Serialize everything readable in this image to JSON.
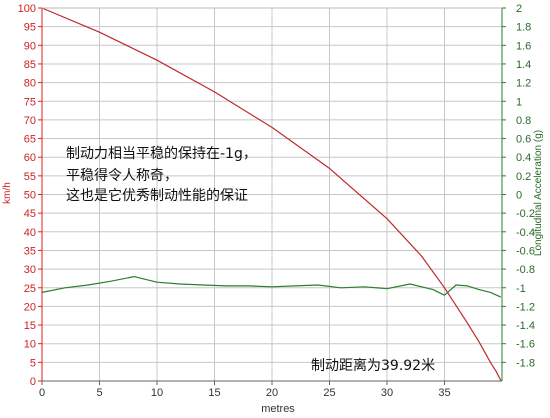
{
  "chart_data": {
    "type": "line",
    "title": "",
    "xlabel": "metres",
    "ylabel_left": "km/h",
    "ylabel_right": "Longitudinal Acceleration (g)",
    "xlim": [
      0,
      40
    ],
    "ylim_left": [
      0,
      100
    ],
    "ylim_right": [
      -2,
      2
    ],
    "grid": true,
    "x_ticks": [
      0,
      5,
      10,
      15,
      20,
      25,
      30,
      35
    ],
    "y_left_ticks": [
      0,
      5,
      10,
      15,
      20,
      25,
      30,
      35,
      40,
      45,
      50,
      55,
      60,
      65,
      70,
      75,
      80,
      85,
      90,
      95,
      100
    ],
    "y_right_ticks": [
      "2",
      "1.8",
      "1.6",
      "1.4",
      "1.2",
      "1",
      "0.8",
      "0.6",
      "0.4",
      "0.2",
      "0",
      "-0.2",
      "-0.4",
      "-0.6",
      "-0.8",
      "-1",
      "-1.2",
      "-1.4",
      "-1.6",
      "-1.8"
    ],
    "y_right_tick_values": [
      2,
      1.8,
      1.6,
      1.4,
      1.2,
      1,
      0.8,
      0.6,
      0.4,
      0.2,
      0,
      -0.2,
      -0.4,
      -0.6,
      -0.8,
      -1,
      -1.2,
      -1.4,
      -1.6,
      -1.8
    ],
    "colors": {
      "speed": "#c0282d",
      "accel": "#2e7d2e",
      "left_axis": "#dd2222",
      "right_axis": "#2e7d2e",
      "grid": "#c8c8c8"
    },
    "series": [
      {
        "axis": "left",
        "x": [
          0,
          5,
          10,
          15,
          20,
          25,
          30,
          33,
          35,
          37,
          38,
          39,
          39.5,
          39.92
        ],
        "values": [
          100,
          93.5,
          86,
          77.5,
          68,
          57,
          43.5,
          33.5,
          25,
          15.5,
          10.5,
          5,
          2.5,
          0
        ]
      },
      {
        "axis": "right",
        "x": [
          0,
          2,
          4,
          6,
          8,
          10,
          12,
          14,
          16,
          18,
          20,
          22,
          24,
          26,
          28,
          30,
          32,
          34,
          35,
          36,
          37,
          38,
          39,
          39.9
        ],
        "values": [
          -1.05,
          -1.0,
          -0.97,
          -0.93,
          -0.88,
          -0.94,
          -0.96,
          -0.97,
          -0.98,
          -0.98,
          -0.99,
          -0.98,
          -0.97,
          -1.0,
          -0.99,
          -1.01,
          -0.96,
          -1.02,
          -1.08,
          -0.97,
          -0.98,
          -1.02,
          -1.05,
          -1.1
        ]
      }
    ],
    "annotations": {
      "note_line1": "制动力相当平稳的保持在-1g，",
      "note_line2": "平稳得令人称奇，",
      "note_line3": "这也是它优秀制动性能的保证",
      "distance": "制动距离为39.92米"
    }
  }
}
